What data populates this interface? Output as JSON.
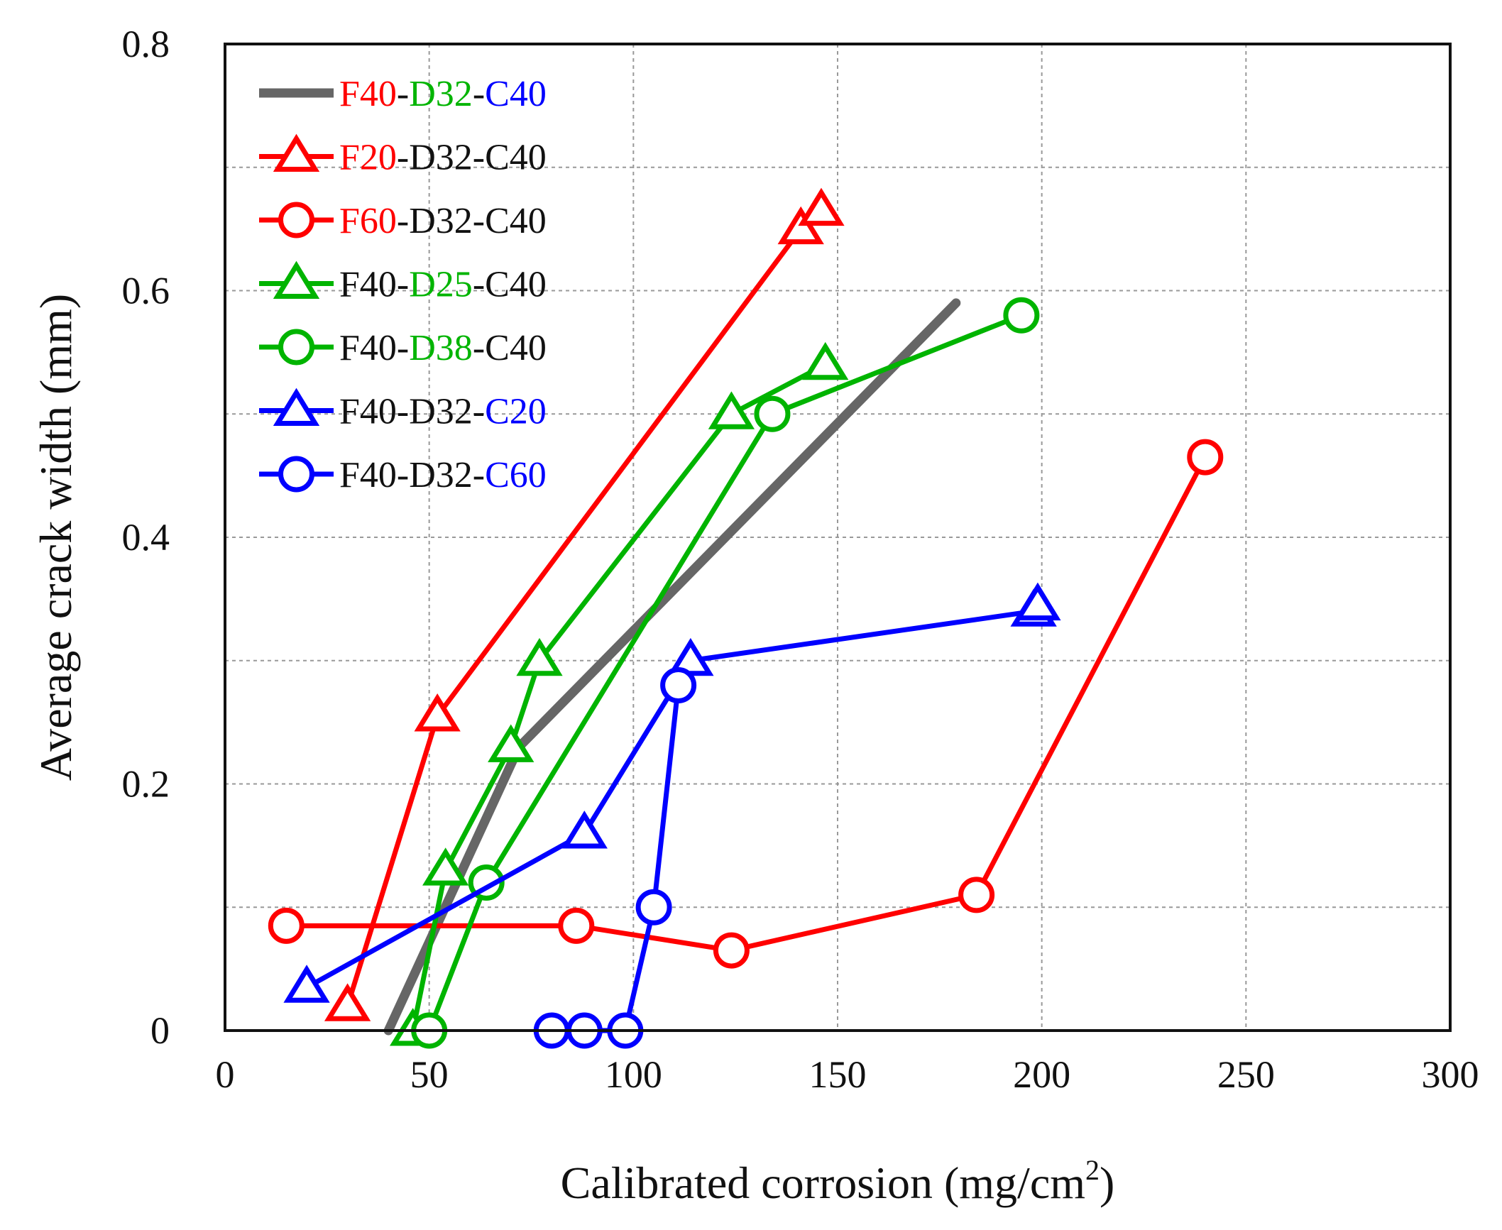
{
  "chart_data": {
    "type": "line",
    "xlabel_main": "Calibrated corrosion (mg/cm",
    "xlabel_sup": "2",
    "xlabel_end": ")",
    "ylabel": "Average crack width (mm)",
    "xlim": [
      0,
      300
    ],
    "ylim": [
      0,
      0.8
    ],
    "xticks": [
      0,
      50,
      100,
      150,
      200,
      250,
      300
    ],
    "yticks": [
      0,
      0.2,
      0.4,
      0.6,
      0.8
    ],
    "xtick_labels": [
      "0",
      "50",
      "100",
      "150",
      "200",
      "250",
      "300"
    ],
    "ytick_labels": [
      "0",
      "0.2",
      "0.4",
      "0.6",
      "0.8"
    ],
    "grid_x": [
      50,
      100,
      150,
      200,
      250
    ],
    "grid_y": [
      0.1,
      0.2,
      0.3,
      0.4,
      0.5,
      0.6,
      0.7
    ],
    "legend_position": "top-left",
    "series": [
      {
        "name": "F40-D32-C40",
        "parts": [
          {
            "t": "F40",
            "c": "#ff0000"
          },
          {
            "t": "-",
            "c": "#111111"
          },
          {
            "t": "D32",
            "c": "#00b400"
          },
          {
            "t": "-",
            "c": "#111111"
          },
          {
            "t": "C40",
            "c": "#0000ff"
          }
        ],
        "color": "#666666",
        "marker": "none",
        "width": 13,
        "points": [
          [
            40,
            0
          ],
          [
            72,
            0.23
          ],
          [
            179,
            0.59
          ]
        ]
      },
      {
        "name": "F20-D32-C40",
        "parts": [
          {
            "t": "F20",
            "c": "#ff0000"
          },
          {
            "t": "-D32-C40",
            "c": "#111111"
          }
        ],
        "color": "#ff0000",
        "marker": "triangle",
        "width": 7,
        "points": [
          [
            30,
            0.02
          ],
          [
            52,
            0.255
          ],
          [
            141,
            0.65
          ],
          [
            146,
            0.665
          ]
        ]
      },
      {
        "name": "F60-D32-C40",
        "parts": [
          {
            "t": "F60",
            "c": "#ff0000"
          },
          {
            "t": "-D32-C40",
            "c": "#111111"
          }
        ],
        "color": "#ff0000",
        "marker": "circle",
        "width": 7,
        "points": [
          [
            15,
            0.085
          ],
          [
            86,
            0.085
          ],
          [
            124,
            0.065
          ],
          [
            184,
            0.11
          ],
          [
            240,
            0.465
          ]
        ]
      },
      {
        "name": "F40-D25-C40",
        "parts": [
          {
            "t": "F40-",
            "c": "#111111"
          },
          {
            "t": "D25",
            "c": "#00b400"
          },
          {
            "t": "-C40",
            "c": "#111111"
          }
        ],
        "color": "#00b400",
        "marker": "triangle",
        "width": 7,
        "points": [
          [
            46,
            0
          ],
          [
            54,
            0.13
          ],
          [
            70,
            0.23
          ],
          [
            77,
            0.3
          ],
          [
            124,
            0.5
          ],
          [
            147,
            0.54
          ]
        ]
      },
      {
        "name": "F40-D38-C40",
        "parts": [
          {
            "t": "F40-",
            "c": "#111111"
          },
          {
            "t": "D38",
            "c": "#00b400"
          },
          {
            "t": "-C40",
            "c": "#111111"
          }
        ],
        "color": "#00b400",
        "marker": "circle",
        "width": 7,
        "points": [
          [
            50,
            0
          ],
          [
            64,
            0.12
          ],
          [
            134,
            0.5
          ],
          [
            195,
            0.58
          ]
        ]
      },
      {
        "name": "F40-D32-C20",
        "parts": [
          {
            "t": "F40-D32-",
            "c": "#111111"
          },
          {
            "t": "C20",
            "c": "#0000ff"
          }
        ],
        "color": "#0000ff",
        "marker": "triangle",
        "width": 7,
        "points": [
          [
            20,
            0.035
          ],
          [
            88,
            0.16
          ],
          [
            114,
            0.3
          ],
          [
            198,
            0.34
          ],
          [
            199,
            0.345
          ]
        ]
      },
      {
        "name": "F40-D32-C60",
        "parts": [
          {
            "t": "F40-D32-",
            "c": "#111111"
          },
          {
            "t": "C60",
            "c": "#0000ff"
          }
        ],
        "color": "#0000ff",
        "marker": "circle",
        "width": 7,
        "points": [
          [
            80,
            0
          ],
          [
            88,
            0
          ],
          [
            98,
            0
          ],
          [
            105,
            0.1
          ],
          [
            111,
            0.28
          ]
        ]
      }
    ]
  }
}
